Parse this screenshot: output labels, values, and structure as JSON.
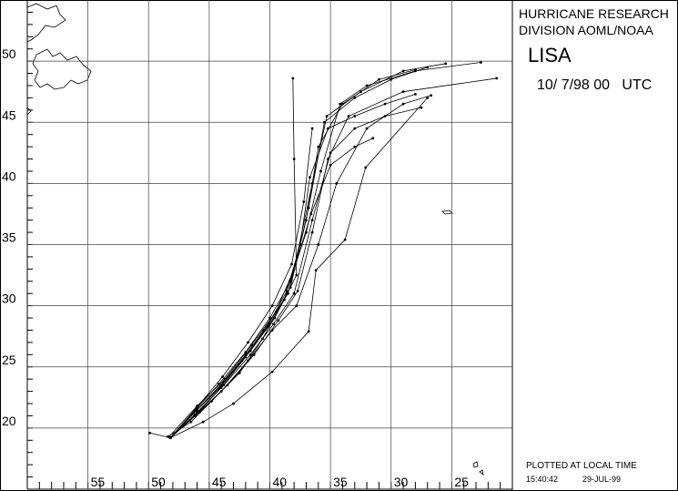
{
  "header": {
    "line1": "HURRICANE RESEARCH",
    "line2": "DIVISION AOML/NOAA",
    "storm": "LISA",
    "datetime": "10/ 7/98 00   UTC"
  },
  "footer": {
    "note": "PLOTTED AT LOCAL TIME",
    "time": "15:40:42",
    "date": "29-JUL-99"
  },
  "chart_data": {
    "type": "track",
    "color": "#000000",
    "grid": true,
    "xlim": [
      60,
      20
    ],
    "ylim": [
      15,
      55
    ],
    "xticks": [
      55,
      50,
      45,
      40,
      35,
      30,
      25
    ],
    "yticks": [
      50,
      45,
      40,
      35,
      30,
      25,
      20
    ],
    "series": [
      {
        "x": [
          48.2,
          46,
          44,
          42,
          40,
          38.3,
          36.8,
          35.5,
          33,
          30,
          27
        ],
        "values": [
          19.2,
          21.5,
          23.5,
          26,
          28.5,
          31.5,
          38,
          45,
          47,
          48.5,
          49.5
        ]
      },
      {
        "x": [
          48.2,
          46.3,
          44.2,
          42.3,
          40.5,
          38.5,
          37,
          36,
          34,
          31,
          28
        ],
        "values": [
          19.2,
          21.2,
          23.2,
          25.5,
          28,
          31,
          37,
          43,
          46.5,
          48.5,
          49.3
        ]
      },
      {
        "x": [
          48.3,
          46,
          43.7,
          41.5,
          39.5,
          38,
          36.5,
          35.3,
          32.5,
          29,
          25.5
        ],
        "values": [
          19.3,
          21.8,
          24,
          26.8,
          29.5,
          33,
          40,
          45.5,
          47.5,
          49.2,
          49.8
        ]
      },
      {
        "x": [
          48.2,
          45.8,
          43.5,
          41.3,
          39.3,
          37.7,
          36.5,
          35.2,
          33.5,
          29,
          21.3
        ],
        "values": [
          19.2,
          21.3,
          23.5,
          26,
          28.8,
          31.2,
          36,
          42,
          45.5,
          47.5,
          48.6
        ]
      },
      {
        "x": [
          48.2,
          45.5,
          43,
          39.8,
          36.8,
          36.2,
          33.8,
          32.1,
          27
        ],
        "values": [
          19.2,
          20.5,
          22,
          24.6,
          27.9,
          32.9,
          35.4,
          41.3,
          47
        ]
      },
      {
        "x": [
          49.9,
          48.2,
          46,
          43.8,
          41.6,
          39.6,
          37.8,
          38,
          38.1
        ],
        "values": [
          19.6,
          19.2,
          21.5,
          23.8,
          26.3,
          29,
          32.5,
          42,
          48.6
        ]
      },
      {
        "x": [
          48.4,
          46.5,
          44.8,
          42.5,
          40.6,
          38.8,
          37.5,
          36.7,
          35.2,
          33,
          30.5,
          28
        ],
        "values": [
          19.3,
          20.5,
          22.2,
          24.5,
          27.3,
          30.5,
          35,
          40.5,
          44.5,
          45.5,
          46.5,
          47.3
        ]
      },
      {
        "x": [
          48.2,
          46.2,
          44,
          41.8,
          39.8,
          37.8,
          36,
          34.5,
          32,
          29,
          26.7
        ],
        "values": [
          19.2,
          21,
          23,
          25.5,
          28,
          30,
          35,
          40,
          44.5,
          46.5,
          47.2
        ]
      },
      {
        "x": [
          48.2,
          46,
          43.9,
          41.8,
          39.8,
          38.2,
          37.2,
          36.5
        ],
        "values": [
          19.2,
          21.7,
          24.2,
          27,
          30,
          33.4,
          38.5,
          44.5
        ]
      },
      {
        "x": [
          48.2,
          46.2,
          44.2,
          42,
          40,
          38.3,
          36.6,
          35,
          33,
          31.5
        ],
        "values": [
          19.2,
          21.4,
          23.6,
          26.2,
          29,
          32,
          37.5,
          41.5,
          43,
          43.7
        ]
      },
      {
        "x": [
          48.2,
          46.1,
          44,
          42,
          40.2,
          38.6,
          37,
          35.8,
          34.2,
          32,
          28,
          22.6
        ],
        "values": [
          19.2,
          21.1,
          23.3,
          25.8,
          28.3,
          31.2,
          36,
          41,
          46.5,
          48,
          49.2,
          49.9
        ]
      },
      {
        "x": [
          48.2,
          46,
          43.8,
          41.6,
          39.7,
          38,
          36.5,
          35,
          33,
          30.5,
          27.5
        ],
        "values": [
          19.2,
          21.3,
          23.5,
          26,
          28.5,
          31,
          37,
          42.5,
          44.5,
          45.5,
          46.2
        ]
      }
    ]
  }
}
